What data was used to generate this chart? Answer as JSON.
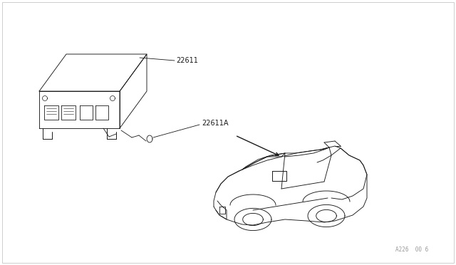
{
  "bg_color": "#ffffff",
  "line_color": "#1a1a1a",
  "label_color": "#1a1a1a",
  "figure_width": 6.4,
  "figure_height": 3.72,
  "dpi": 100,
  "border_color": "#bbbbbb",
  "watermark_text": "A226  00 6",
  "watermark_fontsize": 5.5,
  "watermark_color": "#999999",
  "label_fontsize": 7.0
}
